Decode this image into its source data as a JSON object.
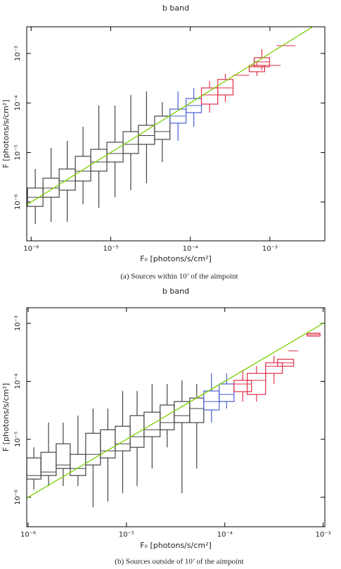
{
  "chart_data": [
    {
      "type": "boxplot",
      "title": "b band",
      "xlabel": "F₀ [photons/s/cm²]",
      "ylabel": "F [photons/s/cm²]",
      "caption": "(a)  Sources within 10’ of the aimpoint",
      "xscale": "log",
      "yscale": "log",
      "xlim": [
        8.8e-07,
        0.0049
      ],
      "ylim": [
        1.65e-07,
        0.00345
      ],
      "xticks": [
        {
          "value": 1e-06,
          "label": "10⁻⁶"
        },
        {
          "value": 1e-05,
          "label": "10⁻⁵"
        },
        {
          "value": 0.0001,
          "label": "10⁻⁴"
        },
        {
          "value": 0.001,
          "label": "10⁻³"
        }
      ],
      "yticks": [
        {
          "value": 1e-06,
          "label": "10⁻⁶"
        },
        {
          "value": 1e-05,
          "label": "10⁻⁵"
        },
        {
          "value": 0.0001,
          "label": "10⁻⁴"
        },
        {
          "value": 0.001,
          "label": "10⁻³"
        }
      ],
      "reference_line": {
        "color": "#7ccf00",
        "x": [
          8.8e-07,
          0.0049
        ],
        "y": [
          8.8e-07,
          0.0049
        ]
      },
      "series": [
        {
          "color": "#444444",
          "x_lo": [
            9e-07,
            1.41e-06,
            2.25e-06,
            3.59e-06,
            5.61e-06,
            8.95e-06,
            1.43e-05,
            2.23e-05,
            3.56e-05
          ],
          "x_hi": [
            1.41e-06,
            2.25e-06,
            3.59e-06,
            5.61e-06,
            8.95e-06,
            1.43e-05,
            2.23e-05,
            3.56e-05,
            5.55e-05
          ],
          "low": [
            3.6e-07,
            3.98e-07,
            3.98e-07,
            9.03e-07,
            7.67e-07,
            1.25e-06,
            1.74e-06,
            2.41e-06,
            6.44e-06
          ],
          "q1": [
            8.18e-07,
            1.25e-06,
            1.74e-06,
            2.66e-06,
            4.21e-06,
            6.44e-06,
            9.55e-06,
            1.46e-05,
            1.84e-05
          ],
          "median": [
            1.25e-06,
            1.92e-06,
            2.66e-06,
            4.21e-06,
            6.44e-06,
            9.55e-06,
            1.46e-05,
            2.2e-05,
            2.64e-05
          ],
          "q3": [
            1.92e-06,
            3.03e-06,
            4.65e-06,
            8.38e-06,
            1.16e-05,
            1.61e-05,
            2.64e-05,
            3.54e-05,
            5.42e-05
          ],
          "high": [
            4.65e-06,
            1.24e-05,
            1.72e-05,
            3.32e-05,
            8.86e-05,
            8.86e-05,
            0.000145,
            0.000171,
            0.000104
          ]
        },
        {
          "color": "#4a5fd6",
          "x_lo": [
            5.55e-05,
            8.85e-05
          ],
          "x_hi": [
            8.85e-05,
            0.000138
          ],
          "low": [
            1.72e-05,
            3.32e-05
          ],
          "q1": [
            3.91e-05,
            6.38e-05
          ],
          "median": [
            5.42e-05,
            8.86e-05
          ],
          "q3": [
            7.52e-05,
            0.000123
          ],
          "high": [
            0.000171,
            0.000201
          ]
        },
        {
          "color": "#e0304a",
          "x_lo": [
            0.000138,
            0.000221,
            0.000344,
            0.00055,
            0.000634,
            0.000859,
            0.00121
          ],
          "x_hi": [
            0.000221,
            0.000344,
            0.00055,
            0.000859,
            0.000991,
            0.00137,
            0.0021
          ],
          "low": [
            6.38e-05,
            0.000104,
            null,
            0.000351,
            0.000456,
            null,
            null
          ],
          "q1": [
            9.47e-05,
            0.000145,
            null,
            0.000427,
            0.000537,
            null,
            null
          ],
          "median": [
            0.000145,
            0.000201,
            0.000362,
            0.000537,
            0.000675,
            0.000573,
            0.00143
          ],
          "q3": [
            0.000201,
            0.000298,
            null,
            0.000573,
            0.00082,
            null,
            null
          ],
          "high": [
            0.000279,
            0.000387,
            null,
            0.000675,
            0.00122,
            null,
            null
          ]
        }
      ]
    },
    {
      "type": "boxplot",
      "title": "b band",
      "xlabel": "F₀ [photons/s/cm²]",
      "ylabel": "F [photons/s/cm²]",
      "caption": "(b)  Sources outside of 10’ of the aimpoint",
      "xscale": "log",
      "yscale": "log",
      "xlim": [
        9.68e-07,
        0.00104
      ],
      "ylim": [
        3.1e-07,
        0.00186
      ],
      "xticks": [
        {
          "value": 1e-06,
          "label": "10⁻⁶"
        },
        {
          "value": 1e-05,
          "label": "10⁻⁵"
        },
        {
          "value": 0.0001,
          "label": "10⁻⁴"
        },
        {
          "value": 0.001,
          "label": "10⁻³"
        }
      ],
      "yticks": [
        {
          "value": 1e-06,
          "label": "10⁻⁶"
        },
        {
          "value": 1e-05,
          "label": "10⁻⁵"
        },
        {
          "value": 0.0001,
          "label": "10⁻⁴"
        },
        {
          "value": 0.001,
          "label": "10⁻³"
        }
      ],
      "reference_line": {
        "color": "#7ccf00",
        "x": [
          9.68e-07,
          0.00104
        ],
        "y": [
          9.68e-07,
          0.00104
        ]
      },
      "series": [
        {
          "color": "#444444",
          "x_lo": [
            9.68e-07,
            1.35e-06,
            1.93e-06,
            2.68e-06,
            3.85e-06,
            5.44e-06,
            7.69e-06,
            1.09e-05,
            1.51e-05,
            2.2e-05,
            3.06e-05,
            4.4e-05
          ],
          "x_hi": [
            1.35e-06,
            1.93e-06,
            2.68e-06,
            3.85e-06,
            5.44e-06,
            7.69e-06,
            1.09e-05,
            1.51e-05,
            2.2e-05,
            3.06e-05,
            4.4e-05,
            6.11e-05
          ],
          "low": [
            1.36e-06,
            1.56e-06,
            1.56e-06,
            1.56e-06,
            6.74e-07,
            8.43e-07,
            1.18e-06,
            1.56e-06,
            3.14e-06,
            7.27e-06,
            1.18e-06,
            3.14e-06
          ],
          "q1": [
            2.06e-06,
            2.37e-06,
            3.14e-06,
            2.37e-06,
            3.61e-06,
            4.77e-06,
            6.32e-06,
            7.27e-06,
            1.11e-05,
            1.46e-05,
            1.94e-05,
            1.94e-05
          ],
          "median": [
            2.37e-06,
            2.73e-06,
            3.61e-06,
            3.14e-06,
            5.49e-06,
            6.32e-06,
            8.36e-06,
            1.11e-05,
            1.46e-05,
            1.94e-05,
            2.56e-05,
            3.39e-05
          ],
          "q3": [
            4.77e-06,
            5.97e-06,
            8.36e-06,
            5.49e-06,
            1.27e-05,
            1.46e-05,
            1.68e-05,
            2.56e-05,
            2.94e-05,
            3.9e-05,
            4.48e-05,
            5.15e-05
          ],
          "high": [
            7.27e-06,
            1.94e-05,
            1.94e-05,
            2.56e-05,
            3.39e-05,
            3.39e-05,
            6.82e-05,
            6.82e-05,
            9.02e-05,
            9.02e-05,
            0.000104,
            9.02e-05
          ]
        },
        {
          "color": "#4a5fd6",
          "x_lo": [
            6.11e-05,
            8.77e-05
          ],
          "x_hi": [
            8.77e-05,
            0.000124
          ],
          "low": [
            1.94e-05,
            3.39e-05
          ],
          "q1": [
            3.21e-05,
            4.48e-05
          ],
          "median": [
            4.48e-05,
            5.93e-05
          ],
          "q3": [
            6.82e-05,
            9.02e-05
          ],
          "high": [
            0.000137,
            0.000137
          ]
        },
        {
          "color": "#e0304a",
          "x_lo": [
            0.000124,
            0.000169,
            0.00026,
            0.000343,
            0.00044,
            0.000685
          ],
          "x_hi": [
            0.000187,
            0.00026,
            0.000385,
            0.000501,
            0.00056,
            0.00093
          ],
          "low": [
            4.48e-05,
            4.48e-05,
            9.02e-05,
            null,
            null,
            null
          ],
          "q1": [
            6.63e-05,
            5.93e-05,
            0.000137,
            0.000182,
            null,
            0.000604
          ],
          "median": [
            9.02e-05,
            0.000104,
            0.000182,
            0.000209,
            0.000336,
            0.00064
          ],
          "q3": [
            0.000104,
            0.000137,
            0.000209,
            0.00024,
            null,
            0.000676
          ],
          "high": [
            0.000158,
            0.000182,
            0.000276,
            null,
            null,
            null
          ]
        }
      ]
    }
  ]
}
